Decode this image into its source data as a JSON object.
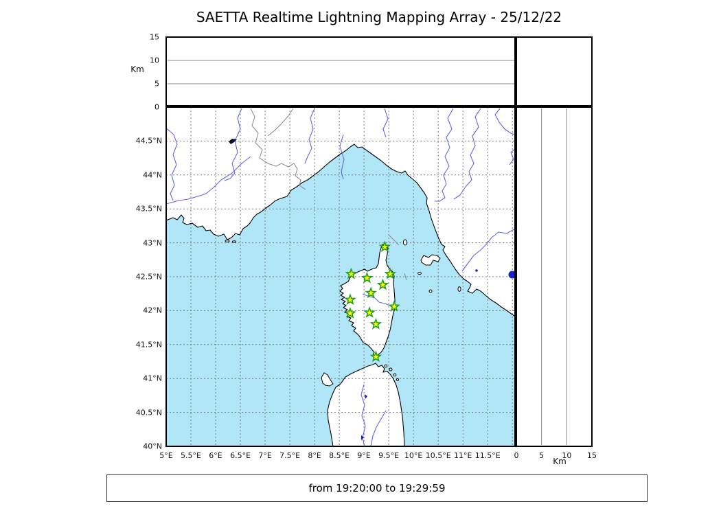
{
  "title": "SAETTA Realtime Lightning Mapping Array - 25/12/22",
  "footer": {
    "text": "from 19:20:00 to 19:29:59"
  },
  "chart_data": {
    "type": "scatter",
    "title": "SAETTA Realtime Lightning Mapping Array - 25/12/22",
    "date": "25/12/22",
    "time_window": {
      "from": "19:20:00",
      "to": "19:29:59"
    },
    "geo_axes": {
      "lon_range": [
        5.0,
        12.08
      ],
      "lat_range": [
        40.0,
        45.0
      ],
      "grid": "dashed",
      "grid_step_deg": 0.5,
      "lon_ticks": [
        {
          "lon": 5.0,
          "label": "5°E"
        },
        {
          "lon": 5.5,
          "label": "5.5°E"
        },
        {
          "lon": 6.0,
          "label": "6°E"
        },
        {
          "lon": 6.5,
          "label": "6.5°E"
        },
        {
          "lon": 7.0,
          "label": "7°E"
        },
        {
          "lon": 7.5,
          "label": "7.5°E"
        },
        {
          "lon": 8.0,
          "label": "8°E"
        },
        {
          "lon": 8.5,
          "label": "8.5°E"
        },
        {
          "lon": 9.0,
          "label": "9°E"
        },
        {
          "lon": 9.5,
          "label": "9.5°E"
        },
        {
          "lon": 10.0,
          "label": "10°E"
        },
        {
          "lon": 10.5,
          "label": "10.5°E"
        },
        {
          "lon": 11.0,
          "label": "11°E"
        },
        {
          "lon": 11.5,
          "label": "11.5°E"
        }
      ],
      "lat_ticks": [
        {
          "lat": 44.5,
          "label": "44.5°N"
        },
        {
          "lat": 44.0,
          "label": "44°N"
        },
        {
          "lat": 43.5,
          "label": "43.5°N"
        },
        {
          "lat": 43.0,
          "label": "43°N"
        },
        {
          "lat": 42.5,
          "label": "42.5°N"
        },
        {
          "lat": 42.0,
          "label": "42°N"
        },
        {
          "lat": 41.5,
          "label": "41.5°N"
        },
        {
          "lat": 41.0,
          "label": "41°N"
        },
        {
          "lat": 40.5,
          "label": "40.5°N"
        },
        {
          "lat": 40.0,
          "label": "40°N"
        }
      ]
    },
    "alt_axis": {
      "unit_label": "Km",
      "range_km": [
        0,
        15
      ],
      "gridline_km": [
        5,
        10
      ],
      "ticks": [
        {
          "km": 0,
          "label": "0"
        },
        {
          "km": 5,
          "label": "5"
        },
        {
          "km": 10,
          "label": "10"
        },
        {
          "km": 15,
          "label": "15"
        }
      ]
    },
    "stations": [
      {
        "lon": 9.42,
        "lat": 42.94
      },
      {
        "lon": 8.74,
        "lat": 42.54
      },
      {
        "lon": 9.06,
        "lat": 42.48
      },
      {
        "lon": 9.53,
        "lat": 42.54
      },
      {
        "lon": 9.38,
        "lat": 42.38
      },
      {
        "lon": 9.14,
        "lat": 42.26
      },
      {
        "lon": 8.72,
        "lat": 42.16
      },
      {
        "lon": 9.61,
        "lat": 42.06
      },
      {
        "lon": 9.11,
        "lat": 41.97
      },
      {
        "lon": 8.72,
        "lat": 41.96
      },
      {
        "lon": 9.24,
        "lat": 41.8
      },
      {
        "lon": 9.24,
        "lat": 41.32
      }
    ],
    "lightning_points": [],
    "marker_style": {
      "shape": "star",
      "fill": "#ffff00",
      "stroke": "#1fa11f"
    },
    "colors": {
      "water": "#b0e6f7",
      "land": "#ffffff",
      "river": "#6464e6",
      "lake": "#1122cc",
      "grid": "#777777"
    }
  }
}
